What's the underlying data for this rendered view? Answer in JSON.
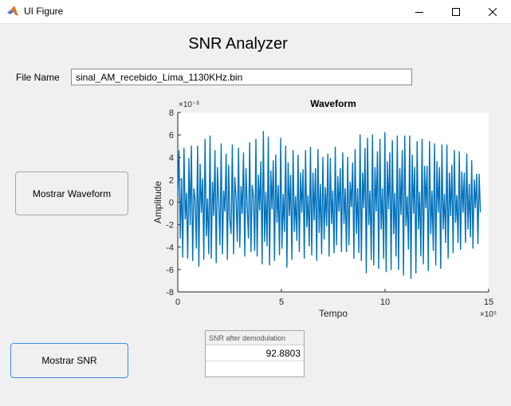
{
  "window": {
    "title": "UI Figure"
  },
  "app": {
    "title": "SNR Analyzer"
  },
  "file": {
    "label": "File Name",
    "value": "sinal_AM_recebido_Lima_1130KHz.bin"
  },
  "buttons": {
    "waveform": "Mostrar Waveform",
    "snr": "Mostrar SNR"
  },
  "snr_table": {
    "header": "SNR after demodulation",
    "value": "92.8803"
  },
  "colors": {
    "line": "#0072bd",
    "accent_border": "#3a8ee6"
  },
  "icons": [
    "matlab-logo-icon",
    "minimize-icon",
    "maximize-icon",
    "close-icon"
  ],
  "chart_data": {
    "type": "line",
    "title": "Waveform",
    "xlabel": "Tempo",
    "ylabel": "Amplitude",
    "x_exponent": "×10⁵",
    "y_exponent": "×10⁻³",
    "xlim": [
      0,
      15
    ],
    "ylim": [
      -8,
      8
    ],
    "x_ticks": [
      "0",
      "5",
      "10",
      "15"
    ],
    "y_ticks": [
      "8",
      "6",
      "4",
      "2",
      "0",
      "-2",
      "-4",
      "-6",
      "-8"
    ],
    "x_range_data": [
      0,
      14.6
    ],
    "grid": false,
    "series": [
      {
        "values": [
          0.5,
          4.6,
          -3.2,
          2.1,
          -4.9,
          4.8,
          -1.5,
          0.8,
          -5.0,
          3.9,
          -2.0,
          5.0,
          -5.2,
          1.2,
          0.2,
          -4.1,
          5.0,
          -5.7,
          3.4,
          -0.9,
          2.1,
          -5.1,
          5.6,
          -3.0,
          0.3,
          -4.6,
          5.9,
          -5.0,
          1.8,
          -1.2,
          4.6,
          -5.4,
          3.1,
          0.1,
          -3.8,
          5.2,
          -4.6,
          1.0,
          -0.8,
          4.3,
          -5.1,
          3.3,
          -1.6,
          -2.8,
          5.1,
          -4.6,
          2.2,
          0.4,
          -3.5,
          4.8,
          -4.0,
          1.4,
          -1.0,
          4.4,
          -4.8,
          3.0,
          -0.5,
          -3.2,
          5.3,
          -4.4,
          1.5,
          0.6,
          -4.3,
          5.6,
          -4.8,
          2.4,
          -0.7,
          3.6,
          -5.5,
          6.3,
          -3.5,
          0.9,
          -3.9,
          5.8,
          -5.6,
          2.8,
          -0.6,
          3.7,
          -5.2,
          4.2,
          -1.8,
          1.5,
          -4.7,
          5.7,
          -4.1,
          0.7,
          -2.6,
          5.0,
          -5.8,
          3.5,
          -1.2,
          2.4,
          -5.1,
          4.6,
          -2.6,
          0.5,
          -3.4,
          4.2,
          -4.4,
          2.6,
          -0.9,
          2.9,
          -5.0,
          4.6,
          -2.2,
          0.6,
          -3.9,
          4.9,
          -4.7,
          2.6,
          -1.6,
          3.0,
          -5.2,
          4.7,
          -2.7,
          1.6,
          -4.6,
          4.0,
          -3.3,
          1.3,
          -2.1,
          4.3,
          -4.8,
          3.9,
          -1.9,
          1.0,
          -4.5,
          4.9,
          -3.8,
          2.3,
          -0.8,
          3.0,
          -4.4,
          4.4,
          -1.9,
          1.2,
          -4.4,
          4.0,
          -3.8,
          1.8,
          -0.4,
          3.5,
          -5.0,
          4.7,
          -2.8,
          1.2,
          -4.5,
          6.0,
          -5.2,
          2.6,
          -0.5,
          4.8,
          -6.3,
          5.7,
          -2.0,
          1.0,
          -5.1,
          6.0,
          -5.6,
          3.1,
          -0.8,
          4.5,
          -5.9,
          5.6,
          -2.4,
          1.2,
          -5.0,
          6.2,
          -6.2,
          3.6,
          -0.6,
          4.4,
          -6.0,
          5.5,
          -2.8,
          0.8,
          -4.8,
          5.9,
          -6.0,
          3.0,
          -1.1,
          4.6,
          -6.5,
          5.9,
          -2.1,
          0.5,
          -4.2,
          5.9,
          -6.8,
          4.2,
          -1.0,
          3.1,
          -6.3,
          5.4,
          -2.4,
          0.9,
          -4.8,
          5.6,
          -5.5,
          3.2,
          -0.5,
          3.2,
          -6.1,
          5.4,
          -2.8,
          1.0,
          -4.3,
          5.2,
          -5.6,
          3.6,
          -0.9,
          3.1,
          -5.9,
          5.1,
          -2.4,
          0.7,
          -3.6,
          5.1,
          -5.0,
          2.6,
          -1.2,
          3.3,
          -4.5,
          4.6,
          -1.8,
          0.6,
          -3.6,
          4.5,
          -4.2,
          2.7,
          -0.9,
          2.6,
          -3.6,
          4.3,
          -2.4,
          1.6,
          -3.1,
          3.7,
          -4.1,
          2.0,
          -0.5,
          2.5,
          -3.7,
          2.5,
          -0.9
        ]
      }
    ]
  }
}
